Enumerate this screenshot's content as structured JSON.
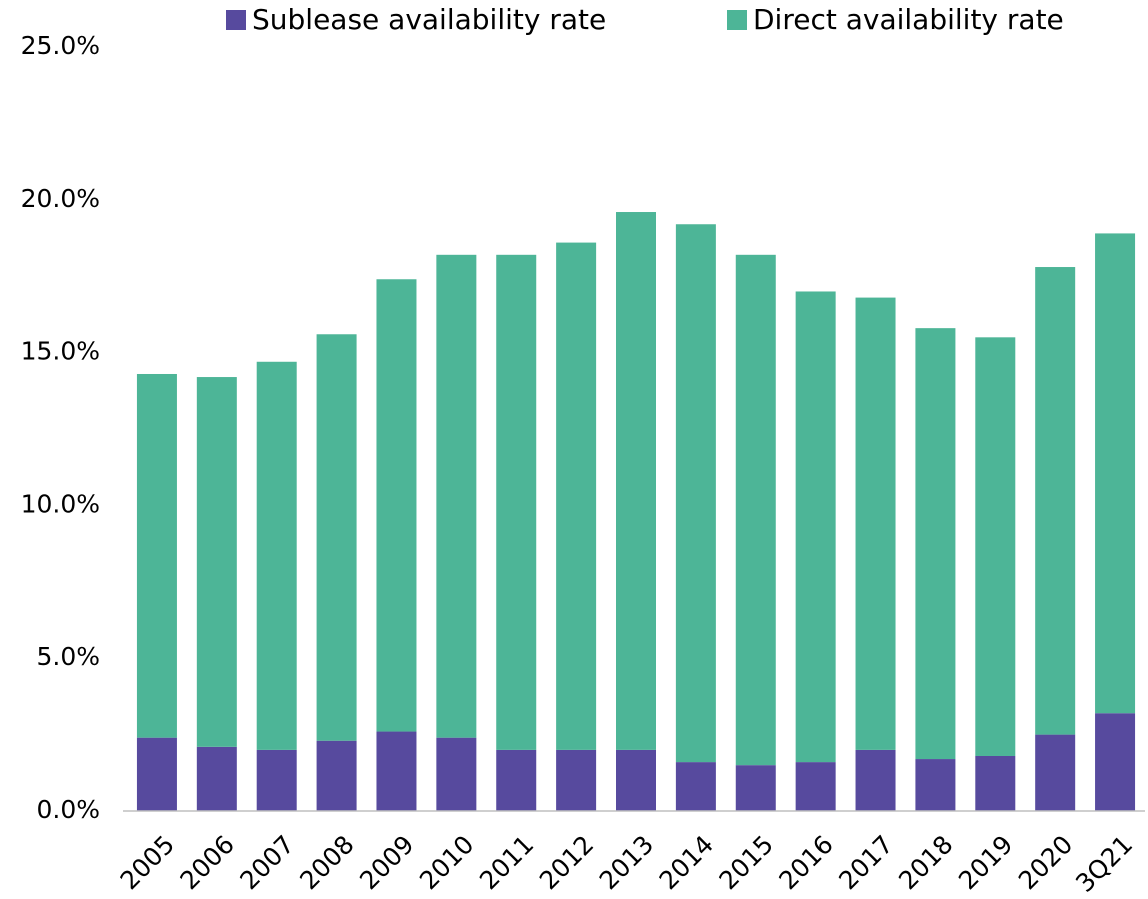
{
  "chart_data": {
    "type": "stacked_bar",
    "categories": [
      "2005",
      "2006",
      "2007",
      "2008",
      "2009",
      "2010",
      "2011",
      "2012",
      "2013",
      "2014",
      "2015",
      "2016",
      "2017",
      "2018",
      "2019",
      "2020",
      "3Q21"
    ],
    "series": [
      {
        "name": "Sublease availability rate",
        "color": "#574a9e",
        "values": [
          2.4,
          2.1,
          2.0,
          2.3,
          2.6,
          2.4,
          2.0,
          2.0,
          2.0,
          1.6,
          1.5,
          1.6,
          2.0,
          1.7,
          1.8,
          2.5,
          3.2
        ]
      },
      {
        "name": "Direct availability rate",
        "color": "#4db597",
        "values": [
          11.9,
          12.1,
          12.7,
          13.3,
          14.8,
          15.8,
          16.2,
          16.6,
          17.6,
          17.6,
          16.7,
          15.4,
          14.8,
          14.1,
          13.7,
          15.3,
          15.7
        ]
      }
    ],
    "ylim": [
      0,
      25
    ],
    "yticks": [
      {
        "value": 0,
        "label": "0.0%"
      },
      {
        "value": 5,
        "label": "5.0%"
      },
      {
        "value": 10,
        "label": "10.0%"
      },
      {
        "value": 15,
        "label": "15.0%"
      },
      {
        "value": 20,
        "label": "20.0%"
      },
      {
        "value": 25,
        "label": "25.0%"
      }
    ],
    "grid": false,
    "legend": "top"
  }
}
